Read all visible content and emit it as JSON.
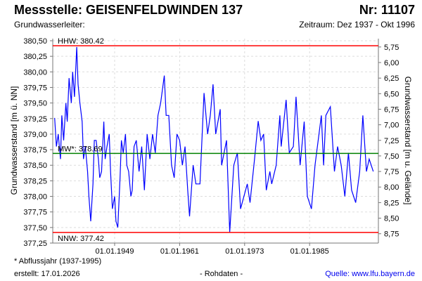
{
  "header": {
    "title": "Messstelle: GEISENFELDWINDEN 137",
    "number": "Nr: 11107",
    "aquifer": "Grundwasserleiter:",
    "period": "Zeitraum: Dez 1937 - Okt 1996"
  },
  "footer": {
    "footnote": "* Abflussjahr (1937-1995)",
    "created": "erstellt:  17.01.2026",
    "raw": "- Rohdaten -",
    "source": "Quelle: www.lfu.bayern.de"
  },
  "chart_data": {
    "type": "line",
    "ylabel": "Grundwasserstand [m ü. NN]",
    "ylabel_right": "Grundwasserstand [m u. Gelände]",
    "ylim": [
      377.25,
      380.5
    ],
    "yticks": [
      "380,50",
      "380,25",
      "380,00",
      "379,75",
      "379,50",
      "379,25",
      "379,00",
      "378,75",
      "378,50",
      "378,25",
      "378,00",
      "377,75",
      "377,50",
      "377,25"
    ],
    "ground_level": 386.15,
    "yticks_right": [
      "5,75",
      "6,00",
      "6,25",
      "6,50",
      "6,75",
      "7,00",
      "7,25",
      "7,50",
      "7,75",
      "8,00",
      "8,25",
      "8,50",
      "8,75"
    ],
    "xticks": [
      "01.01.1949",
      "01.01.1961",
      "01.01.1973",
      "01.01.1985"
    ],
    "grid": true,
    "line_color": "#0000ff",
    "reference_lines": [
      {
        "label": "HHW: 380.42",
        "value": 380.42,
        "color": "#ff0000"
      },
      {
        "label": "MW*: 378.69",
        "value": 378.69,
        "color": "#008000"
      },
      {
        "label": "NNW: 377.42",
        "value": 377.42,
        "color": "#ff0000"
      }
    ],
    "series": [
      {
        "x": [
          "1937-12",
          "1938-04",
          "1938-08",
          "1939-01",
          "1939-04",
          "1939-08",
          "1940-01",
          "1940-04",
          "1940-08",
          "1941-01",
          "1941-04",
          "1941-08",
          "1942-01",
          "1942-04",
          "1942-08",
          "1943-01",
          "1943-04",
          "1943-08",
          "1944-01",
          "1944-04",
          "1944-08",
          "1945-01",
          "1945-04",
          "1945-08",
          "1946-01",
          "1946-04",
          "1946-08",
          "1947-01",
          "1947-04",
          "1947-08",
          "1948-01",
          "1948-04",
          "1948-08",
          "1949-01",
          "1949-04",
          "1949-08",
          "1950-01",
          "1950-04",
          "1950-08",
          "1951-01",
          "1951-04",
          "1951-08",
          "1952-01",
          "1952-04",
          "1952-08",
          "1953-01",
          "1953-07",
          "1954-01",
          "1954-07",
          "1955-01",
          "1955-07",
          "1956-01",
          "1956-07",
          "1957-01",
          "1957-07",
          "1958-03",
          "1958-07",
          "1959-01",
          "1959-07",
          "1960-01",
          "1960-07",
          "1961-01",
          "1961-07",
          "1962-01",
          "1962-07",
          "1962-11",
          "1963-07",
          "1964-01",
          "1964-10",
          "1965-07",
          "1966-03",
          "1966-09",
          "1967-03",
          "1967-09",
          "1968-07",
          "1968-10",
          "1969-09",
          "1970-04",
          "1971-01",
          "1971-09",
          "1972-04",
          "1973-07",
          "1974-01",
          "1974-11",
          "1975-07",
          "1976-01",
          "1976-07",
          "1977-01",
          "1977-09",
          "1978-01",
          "1978-11",
          "1979-07",
          "1979-10",
          "1980-09",
          "1981-04",
          "1982-01",
          "1982-07",
          "1983-04",
          "1984-01",
          "1984-08",
          "1985-05",
          "1986-01",
          "1987-03",
          "1987-08",
          "1988-01",
          "1988-11",
          "1989-08",
          "1990-03",
          "1990-11",
          "1991-07",
          "1992-03",
          "1992-10",
          "1993-07",
          "1994-04",
          "1994-11",
          "1995-07",
          "1996-01",
          "1996-10"
        ],
        "values": [
          379.26,
          378.8,
          379.0,
          378.6,
          379.3,
          378.9,
          379.5,
          379.2,
          379.9,
          379.5,
          380.0,
          379.6,
          380.4,
          379.8,
          379.5,
          379.2,
          378.6,
          378.8,
          378.4,
          378.0,
          377.6,
          378.2,
          378.9,
          378.9,
          378.6,
          378.3,
          378.4,
          379.2,
          378.6,
          378.8,
          379.0,
          378.4,
          377.8,
          378.0,
          377.6,
          377.5,
          378.3,
          378.9,
          378.7,
          379.0,
          378.5,
          378.4,
          378.0,
          378.1,
          378.8,
          378.9,
          378.4,
          378.8,
          378.1,
          379.0,
          378.6,
          379.0,
          378.7,
          379.3,
          379.5,
          379.94,
          379.3,
          379.3,
          378.5,
          378.3,
          379.0,
          378.9,
          378.5,
          378.8,
          378.1,
          377.68,
          378.5,
          378.2,
          378.2,
          379.66,
          379.0,
          379.3,
          379.8,
          379.0,
          379.4,
          378.5,
          378.9,
          377.42,
          378.5,
          378.7,
          377.8,
          378.2,
          377.9,
          378.6,
          379.21,
          378.9,
          379.0,
          378.1,
          378.4,
          378.2,
          378.5,
          379.3,
          378.8,
          379.55,
          378.7,
          378.8,
          379.6,
          378.5,
          379.2,
          378.0,
          377.8,
          378.5,
          379.3,
          378.5,
          379.3,
          379.44,
          378.4,
          378.8,
          378.5,
          378.0,
          378.7,
          378.1,
          377.9,
          378.4,
          379.3,
          378.4,
          378.6,
          378.4
        ]
      }
    ]
  }
}
